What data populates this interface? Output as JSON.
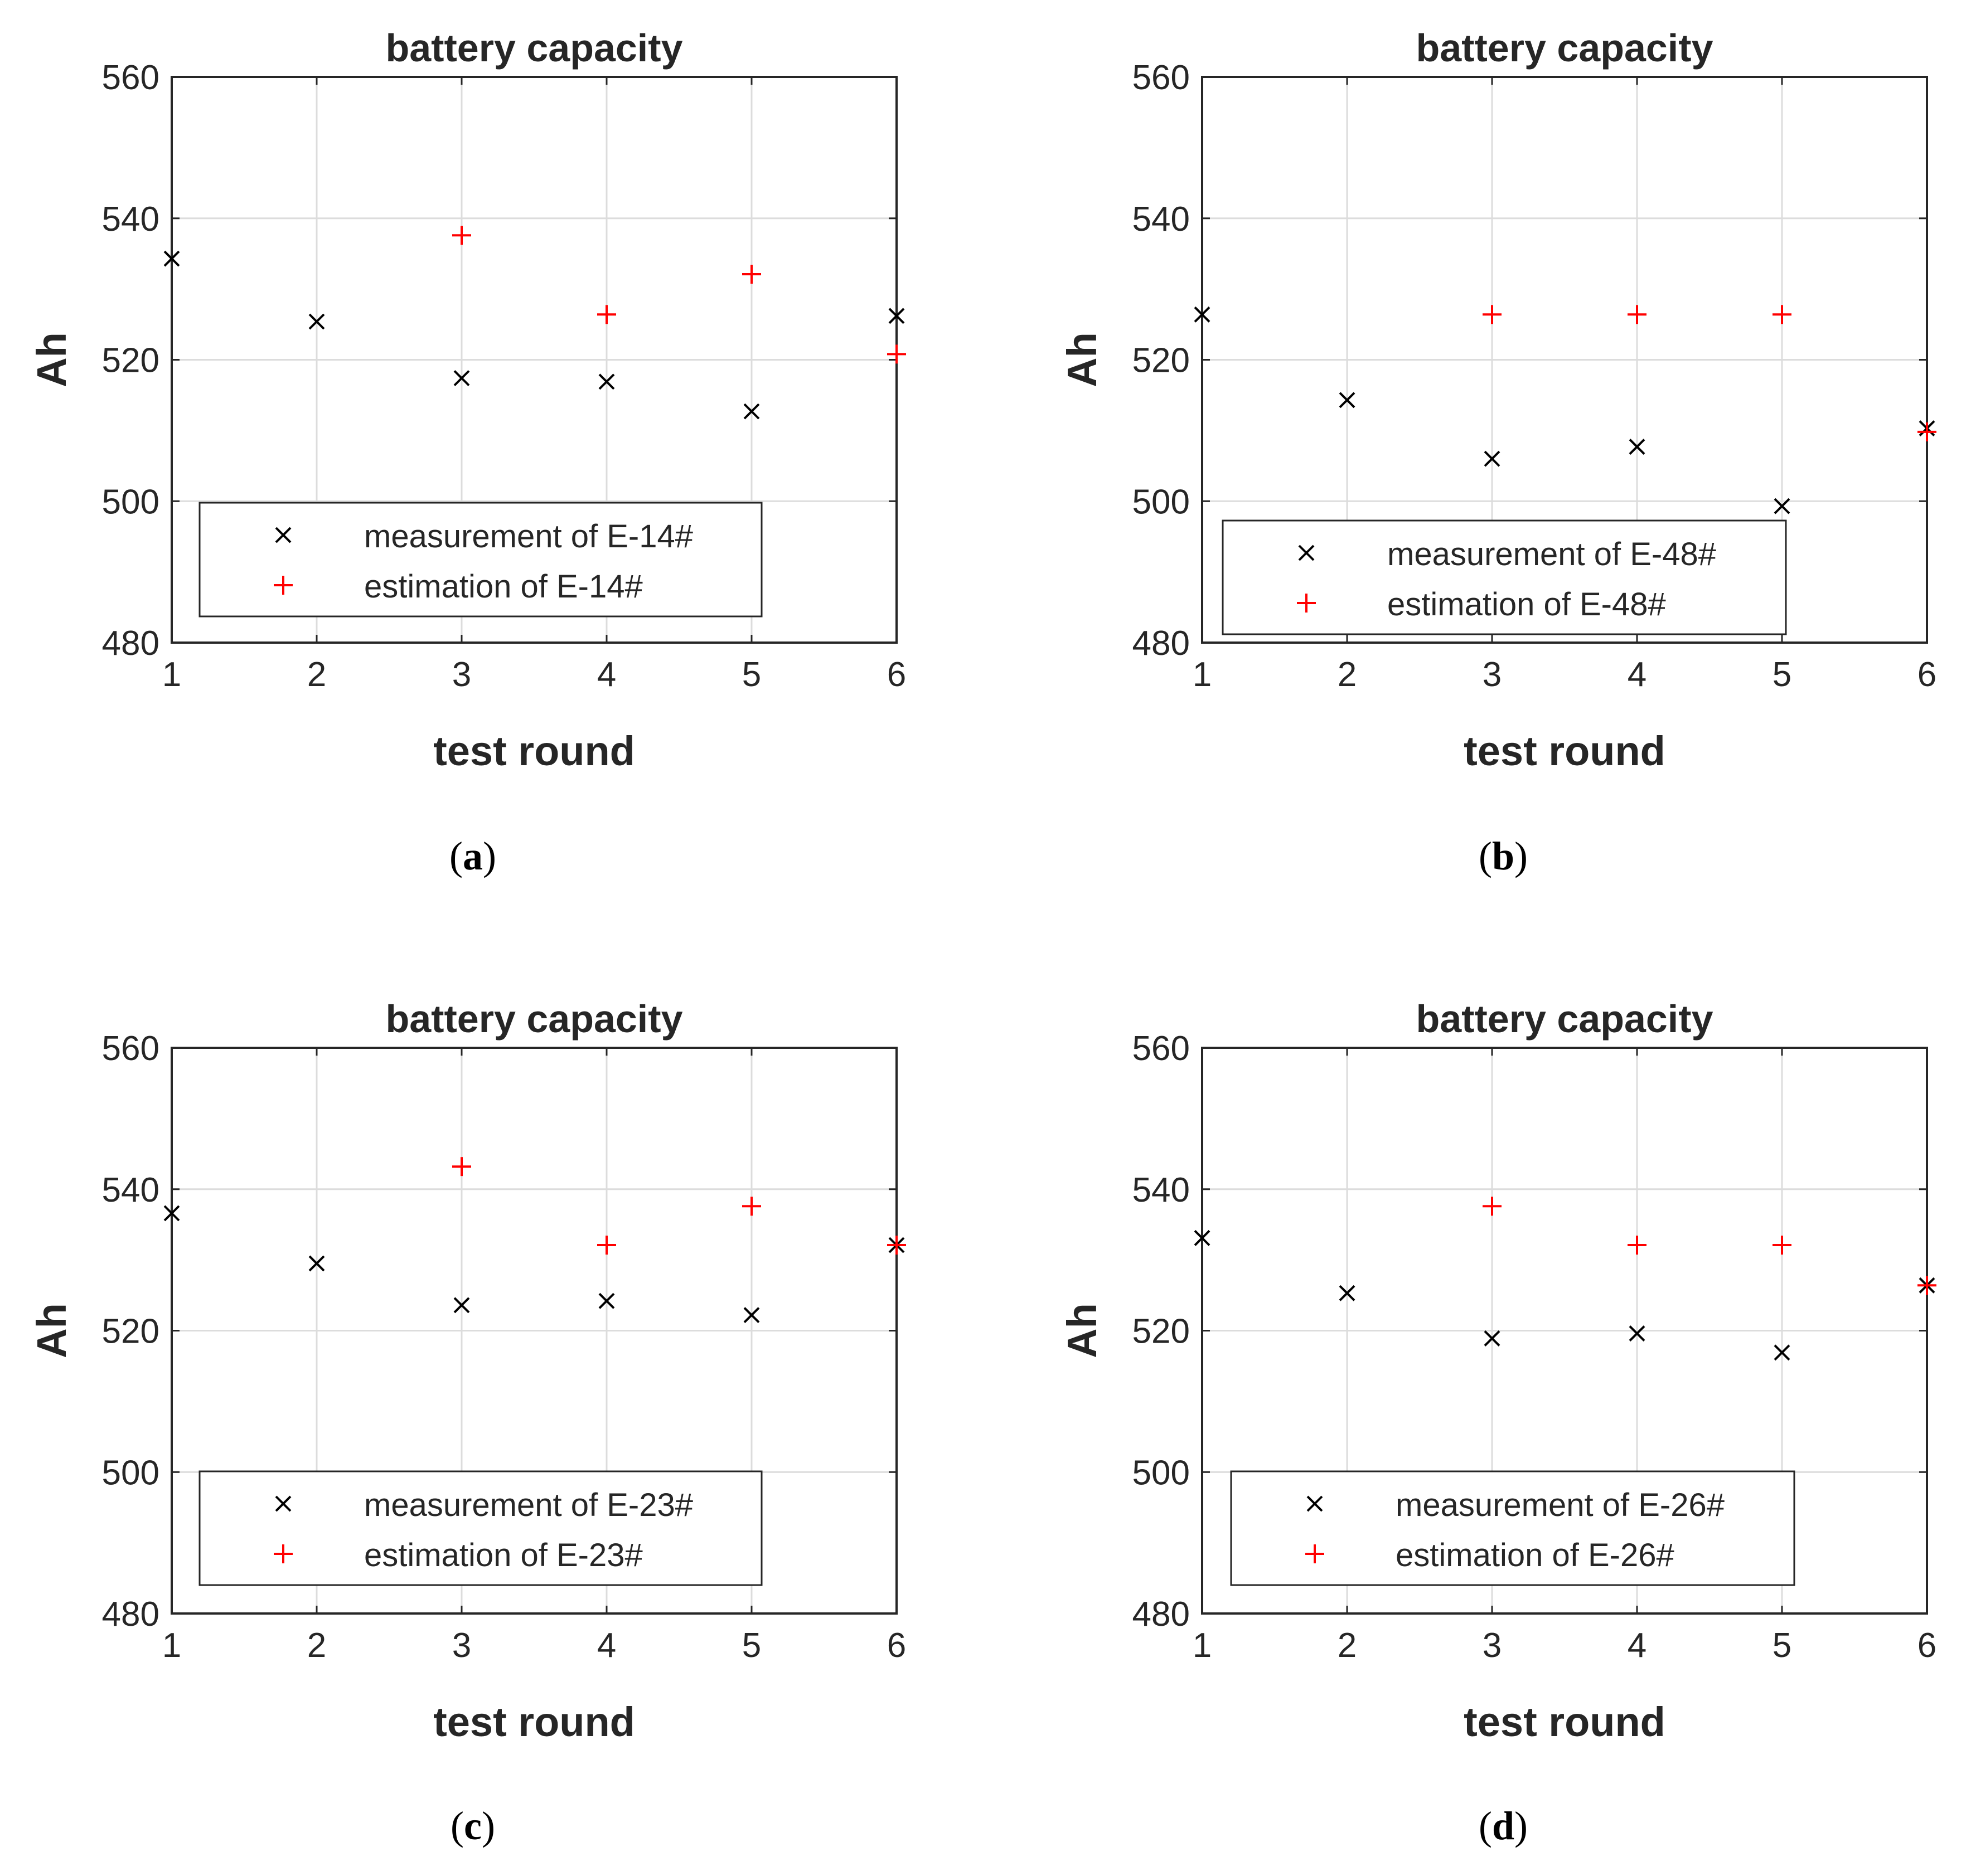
{
  "colors": {
    "measurement": "#000000",
    "estimation": "#ff0000",
    "axis": "#262626",
    "grid": "#dcdcdc",
    "background": "#ffffff"
  },
  "chart_data": [
    {
      "panel": "a",
      "caption_open": "(",
      "caption_letter": "a",
      "caption_close": ")",
      "type": "scatter",
      "title": "battery capacity",
      "xlabel": "test round",
      "ylabel": "Ah",
      "xlim": [
        1,
        6
      ],
      "ylim": [
        480,
        560
      ],
      "xticks": [
        1,
        2,
        3,
        4,
        5,
        6
      ],
      "yticks": [
        480,
        500,
        520,
        540,
        560
      ],
      "xtick_labels": [
        "1",
        "2",
        "3",
        "4",
        "5",
        "6"
      ],
      "ytick_labels": [
        "480",
        "500",
        "520",
        "540",
        "560"
      ],
      "grid": true,
      "legend_position": "lower-left",
      "series": [
        {
          "name": "measurement of E-14#",
          "marker": "x",
          "x": [
            1,
            2,
            3,
            4,
            5,
            6
          ],
          "values": [
            534.3,
            525.4,
            517.4,
            516.9,
            512.7,
            526.2
          ]
        },
        {
          "name": "estimation of E-14#",
          "marker": "+",
          "x": [
            3,
            4,
            5,
            6
          ],
          "values": [
            537.6,
            526.4,
            532.1,
            520.8
          ]
        }
      ]
    },
    {
      "panel": "b",
      "caption_open": "(",
      "caption_letter": "b",
      "caption_close": ")",
      "type": "scatter",
      "title": "battery capacity",
      "xlabel": "test round",
      "ylabel": "Ah",
      "xlim": [
        1,
        6
      ],
      "ylim": [
        480,
        560
      ],
      "xticks": [
        1,
        2,
        3,
        4,
        5,
        6
      ],
      "yticks": [
        480,
        500,
        520,
        540,
        560
      ],
      "xtick_labels": [
        "1",
        "2",
        "3",
        "4",
        "5",
        "6"
      ],
      "ytick_labels": [
        "480",
        "500",
        "520",
        "540",
        "560"
      ],
      "grid": true,
      "legend_position": "lower-left",
      "series": [
        {
          "name": "measurement of E-48#",
          "marker": "x",
          "x": [
            1,
            2,
            3,
            4,
            5,
            6
          ],
          "values": [
            526.4,
            514.3,
            506.0,
            507.7,
            499.3,
            510.3
          ]
        },
        {
          "name": "estimation of E-48#",
          "marker": "+",
          "x": [
            3,
            4,
            5,
            6
          ],
          "values": [
            526.4,
            526.4,
            526.4,
            509.8
          ]
        }
      ]
    },
    {
      "panel": "c",
      "caption_open": "(",
      "caption_letter": "c",
      "caption_close": ")",
      "type": "scatter",
      "title": "battery capacity",
      "xlabel": "test round",
      "ylabel": "Ah",
      "xlim": [
        1,
        6
      ],
      "ylim": [
        480,
        560
      ],
      "xticks": [
        1,
        2,
        3,
        4,
        5,
        6
      ],
      "yticks": [
        480,
        500,
        520,
        540,
        560
      ],
      "xtick_labels": [
        "1",
        "2",
        "3",
        "4",
        "5",
        "6"
      ],
      "ytick_labels": [
        "480",
        "500",
        "520",
        "540",
        "560"
      ],
      "grid": true,
      "legend_position": "lower-left",
      "series": [
        {
          "name": "measurement of E-23#",
          "marker": "x",
          "x": [
            1,
            2,
            3,
            4,
            5,
            6
          ],
          "values": [
            536.6,
            529.5,
            523.6,
            524.2,
            522.2,
            532.1
          ]
        },
        {
          "name": "estimation of E-23#",
          "marker": "+",
          "x": [
            3,
            4,
            5,
            6
          ],
          "values": [
            543.2,
            532.1,
            537.6,
            532.1
          ]
        }
      ]
    },
    {
      "panel": "d",
      "caption_open": "(",
      "caption_letter": "d",
      "caption_close": ")",
      "type": "scatter",
      "title": "battery capacity",
      "xlabel": "test round",
      "ylabel": "Ah",
      "xlim": [
        1,
        6
      ],
      "ylim": [
        480,
        560
      ],
      "xticks": [
        1,
        2,
        3,
        4,
        5,
        6
      ],
      "yticks": [
        480,
        500,
        520,
        540,
        560
      ],
      "xtick_labels": [
        "1",
        "2",
        "3",
        "4",
        "5",
        "6"
      ],
      "ytick_labels": [
        "480",
        "500",
        "520",
        "540",
        "560"
      ],
      "grid": true,
      "legend_position": "lower-left",
      "series": [
        {
          "name": "measurement of E-26#",
          "marker": "x",
          "x": [
            1,
            2,
            3,
            4,
            5,
            6
          ],
          "values": [
            533.1,
            525.3,
            518.9,
            519.6,
            516.9,
            526.4
          ]
        },
        {
          "name": "estimation of E-26#",
          "marker": "+",
          "x": [
            3,
            4,
            5,
            6
          ],
          "values": [
            537.6,
            532.1,
            532.1,
            526.4
          ]
        }
      ]
    }
  ]
}
